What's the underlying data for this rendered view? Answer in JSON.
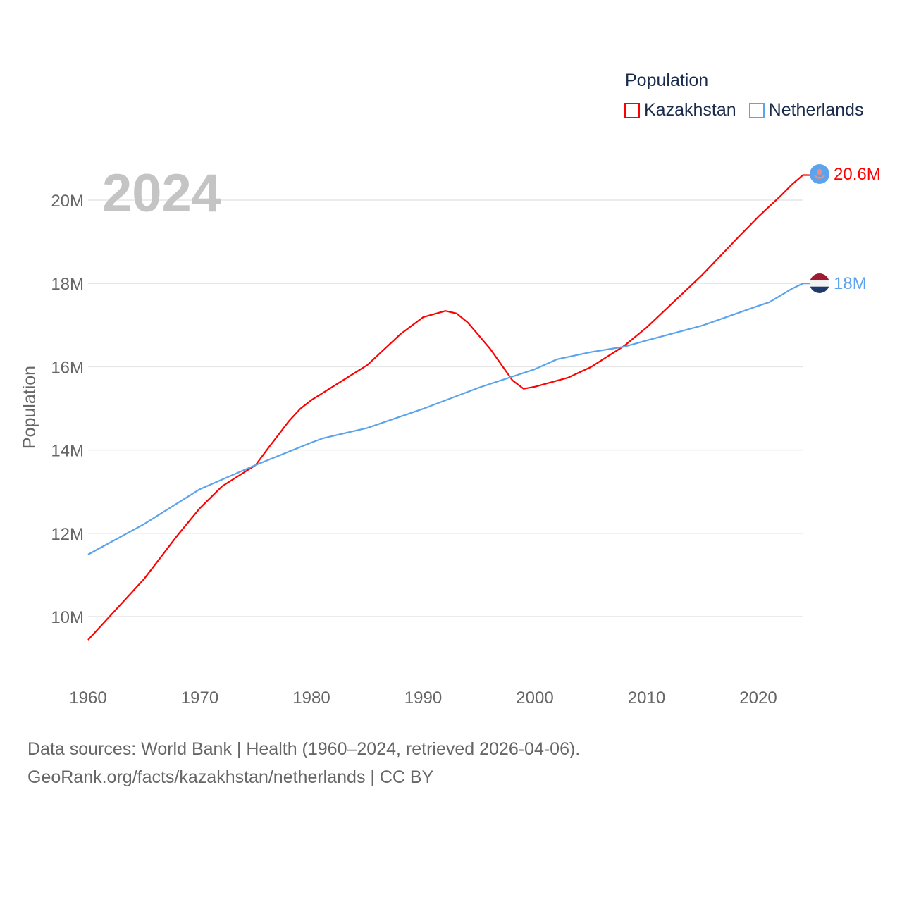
{
  "chart_data": {
    "type": "line",
    "title": "Population",
    "year_label": "2024",
    "xlabel": "",
    "ylabel": "Population",
    "xlim": [
      1960,
      2024
    ],
    "ylim": [
      9,
      21
    ],
    "x_ticks": [
      "1960",
      "1970",
      "1980",
      "1990",
      "2000",
      "2010",
      "2020"
    ],
    "y_ticks": [
      {
        "v": 10,
        "label": "10M"
      },
      {
        "v": 12,
        "label": "12M"
      },
      {
        "v": 14,
        "label": "14M"
      },
      {
        "v": 16,
        "label": "16M"
      },
      {
        "v": 18,
        "label": "18M"
      },
      {
        "v": 20,
        "label": "20M"
      }
    ],
    "grid": true,
    "legend_placement": "top-right",
    "series": [
      {
        "name": "Kazakhstan",
        "color": "#ff0000",
        "end_label": "20.6M",
        "flag": "kazakhstan-flag",
        "x": [
          1960,
          1965,
          1968,
          1970,
          1972,
          1975,
          1976,
          1978,
          1979,
          1980,
          1985,
          1988,
          1990,
          1992,
          1993,
          1994,
          1996,
          1998,
          1999,
          2000,
          2003,
          2005,
          2008,
          2010,
          2013,
          2015,
          2018,
          2020,
          2022,
          2023,
          2024
        ],
        "y": [
          9.44,
          10.9,
          11.95,
          12.6,
          13.13,
          13.64,
          14.0,
          14.7,
          14.99,
          15.2,
          16.04,
          16.79,
          17.19,
          17.34,
          17.28,
          17.06,
          16.43,
          15.67,
          15.47,
          15.52,
          15.74,
          15.99,
          16.5,
          16.94,
          17.7,
          18.21,
          19.05,
          19.6,
          20.1,
          20.37,
          20.6
        ]
      },
      {
        "name": "Netherlands",
        "color": "#5ba3ec",
        "end_label": "18M",
        "flag": "netherlands-flag",
        "x": [
          1960,
          1965,
          1970,
          1975,
          1980,
          1981,
          1985,
          1990,
          1995,
          2000,
          2002,
          2005,
          2008,
          2010,
          2015,
          2020,
          2021,
          2023,
          2024
        ],
        "y": [
          11.49,
          12.22,
          13.06,
          13.64,
          14.18,
          14.28,
          14.53,
          14.99,
          15.5,
          15.94,
          16.18,
          16.35,
          16.48,
          16.63,
          16.99,
          17.46,
          17.55,
          17.87,
          18.0
        ]
      }
    ]
  },
  "footer": {
    "line1": "Data sources: World Bank | Health (1960–2024, retrieved 2026-04-06).",
    "line2": "GeoRank.org/facts/kazakhstan/netherlands | CC BY"
  }
}
